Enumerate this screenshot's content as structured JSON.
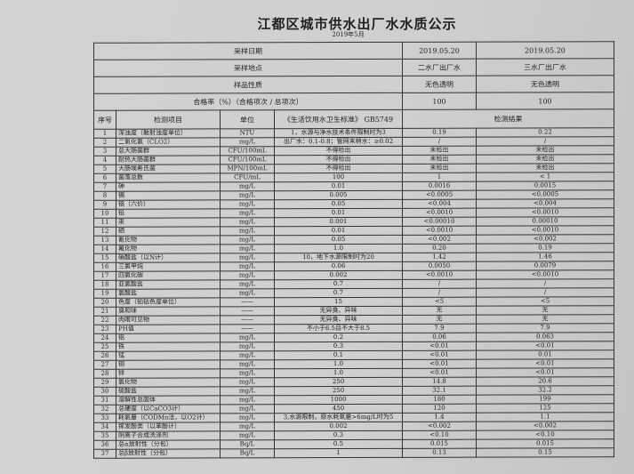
{
  "title": "江都区城市供水出厂水水质公示",
  "subtitle": "2019年5月",
  "meta": [
    {
      "label": "采样日期",
      "v1": "2019.05.20",
      "v2": "2019.05.20"
    },
    {
      "label": "采样地点",
      "v1": "二水厂出厂水",
      "v2": "三水厂出厂水"
    },
    {
      "label": "样品性质",
      "v1": "无色透明",
      "v2": "无色透明"
    },
    {
      "label": "合格率（%）（合格项次 / 总项次）",
      "v1": "100",
      "v2": "100"
    }
  ],
  "headers": {
    "no": "序号",
    "item": "检测项目",
    "unit": "单位",
    "standard": "《生活饮用水卫生标准》 GB5749",
    "result": "检测结果"
  },
  "rows": [
    [
      "1",
      "浑浊度（散射浊度单位）",
      "NTU",
      "1，水源与净水技术条件限制时为3",
      "0.19",
      "0.22"
    ],
    [
      "2",
      "二氧化氯（CLO2）",
      "mg/L",
      "出厂水：0.1-0.8；管网末梢水：≥0.02",
      "/",
      "/"
    ],
    [
      "3",
      "总大肠菌群",
      "CFU/100mL",
      "不得检出",
      "未检出",
      "未检出"
    ],
    [
      "4",
      "耐热大肠菌群",
      "CFU/100mL",
      "不得检出",
      "未检出",
      "未检出"
    ],
    [
      "5",
      "大肠埃希氏菌",
      "MPN/100mL",
      "不得检出",
      "未检出",
      "未检出"
    ],
    [
      "6",
      "菌落总数",
      "CFU/mL",
      "100",
      "1",
      "< 1"
    ],
    [
      "7",
      "砷",
      "mg/L",
      "0.01",
      "0.0016",
      "0.0015"
    ],
    [
      "8",
      "镉",
      "mg/L",
      "0.005",
      "<0.0005",
      "<0.0005"
    ],
    [
      "9",
      "铬（六价）",
      "mg/L",
      "0.05",
      "<0.004",
      "<0.004"
    ],
    [
      "10",
      "铅",
      "mg/L",
      "0.01",
      "<0.0010",
      "<0.0010"
    ],
    [
      "11",
      "汞",
      "mg/L",
      "0.001",
      "<0.00010",
      "0.00010"
    ],
    [
      "12",
      "硒",
      "mg/L",
      "0.01",
      "<0.0010",
      "<0.0010"
    ],
    [
      "13",
      "氰化物",
      "mg/L",
      "0.05",
      "<0.002",
      "<0.002"
    ],
    [
      "14",
      "氟化物",
      "mg/L",
      "1.0",
      "0.20",
      "0.19"
    ],
    [
      "15",
      "硝酸盐（以N计）",
      "mg/L",
      "10，地下水源限制时为20",
      "1.42",
      "1.46"
    ],
    [
      "16",
      "三氯甲烷",
      "mg/L",
      "0.06",
      "0.0050",
      "0.0079"
    ],
    [
      "17",
      "四氯化碳",
      "mg/L",
      "0.002",
      "<0.0010",
      "<0.0010"
    ],
    [
      "18",
      "亚氯酸盐",
      "mg/L",
      "0.7",
      "/",
      "/"
    ],
    [
      "19",
      "氯酸盐",
      "mg/L",
      "0.7",
      "/",
      "/"
    ],
    [
      "20",
      "色度（铂钴色度单位）",
      "——",
      "15",
      "<5",
      "<5"
    ],
    [
      "21",
      "臭和味",
      "——",
      "无异臭、异味",
      "无",
      "无"
    ],
    [
      "22",
      "肉眼可见物",
      "——",
      "无异臭、异味",
      "无",
      "无"
    ],
    [
      "23",
      "PH值",
      "——",
      "不小于6.5且不大于8.5",
      "7.9",
      "7.9"
    ],
    [
      "24",
      "铝",
      "mg/L",
      "0.2",
      "0.06",
      "0.063"
    ],
    [
      "25",
      "铁",
      "mg/L",
      "0.3",
      "<0.01",
      "<0.01"
    ],
    [
      "26",
      "锰",
      "mg/L",
      "0.1",
      "<0.01",
      "0.01"
    ],
    [
      "27",
      "铜",
      "mg/L",
      "1.0",
      "<0.01",
      "<0.01"
    ],
    [
      "28",
      "锌",
      "mg/L",
      "1.0",
      "<0.01",
      "<0.01"
    ],
    [
      "29",
      "氯化物",
      "mg/L",
      "250",
      "14.8",
      "20.6"
    ],
    [
      "30",
      "硫酸盐",
      "mg/L",
      "250",
      "32.1",
      "32.2"
    ],
    [
      "31",
      "溶解性总固体",
      "mg/L",
      "1000",
      "180",
      "199"
    ],
    [
      "32",
      "总硬度（以CaCO3计）",
      "mg/L",
      "450",
      "120",
      "125"
    ],
    [
      "33",
      "耗氧量（CODMn法，以O2计）",
      "mg/L",
      "3,水源限制，原水耗氧量>6mg/L时为5",
      "1.4",
      "1.1"
    ],
    [
      "34",
      "挥发酚类（以苯酚计）",
      "mg/L",
      "0.002",
      "<0.002",
      "<0.002"
    ],
    [
      "35",
      "阴离子合成洗涤剂",
      "mg/L",
      "0.3",
      "<0.10",
      "<0.10"
    ],
    [
      "36",
      "总α放射性（分包）",
      "Bq/L",
      "0.5",
      "0.015",
      "0.015"
    ],
    [
      "37",
      "总β放射性（分包）",
      "Bq/L",
      "1",
      "0.13",
      "0.15"
    ]
  ]
}
